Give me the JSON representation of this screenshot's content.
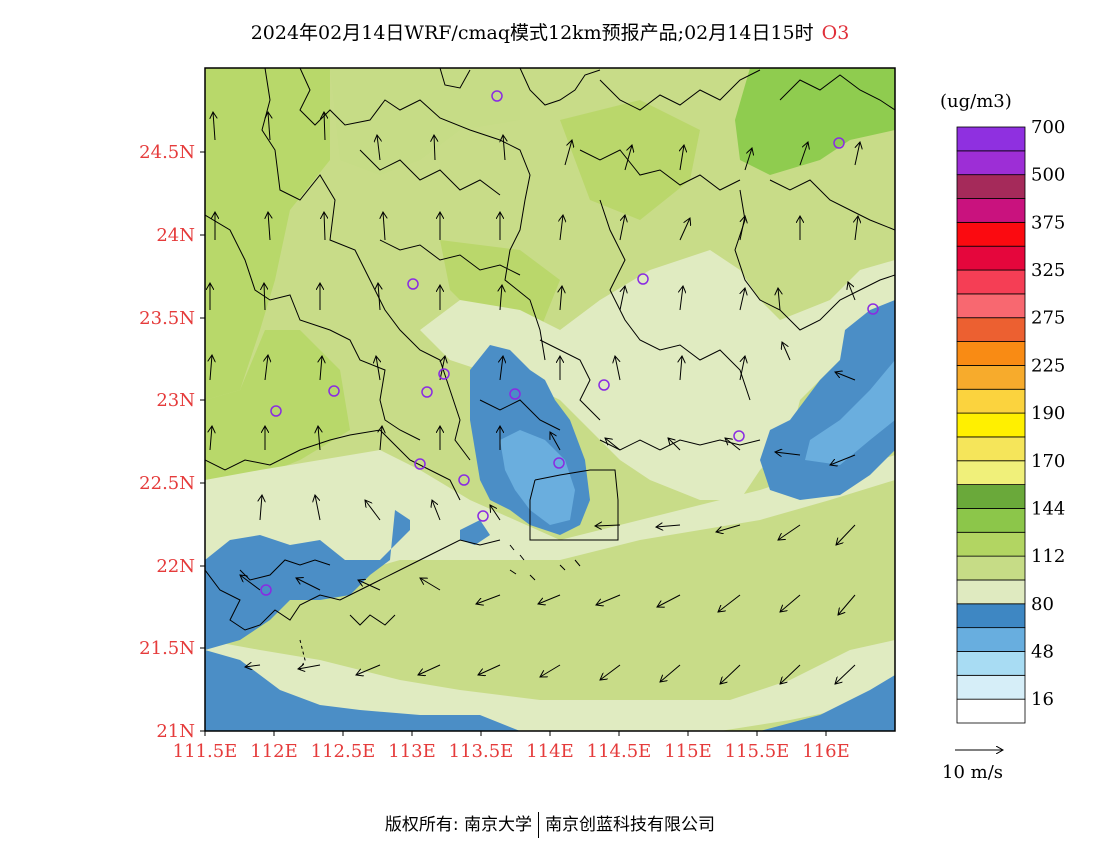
{
  "title": {
    "text": "2024年02月14日WRF/cmaq模式12km预报产品;02月14日15时",
    "pollutant": "O3"
  },
  "axes": {
    "lon_ticks": [
      "111.5E",
      "112E",
      "112.5E",
      "113E",
      "113.5E",
      "114E",
      "114.5E",
      "115E",
      "115.5E",
      "116E"
    ],
    "lat_ticks": [
      "21N",
      "21.5N",
      "22N",
      "22.5N",
      "23N",
      "23.5N",
      "24N",
      "24.5N"
    ],
    "tick_color": "#e53b3b"
  },
  "legend": {
    "unit": "(ug/m3)",
    "labels": [
      "16",
      "48",
      "80",
      "112",
      "144",
      "170",
      "190",
      "225",
      "275",
      "325",
      "375",
      "500",
      "700"
    ],
    "colors_bottom_to_top": [
      "#ffffff",
      "#d6eef8",
      "#a8dcf3",
      "#68aedf",
      "#3e87c3",
      "#dfeac0",
      "#c6dc86",
      "#b2d562",
      "#8cc64a",
      "#6aa93a",
      "#f0f07a",
      "#f5e55a",
      "#fff000",
      "#fbd33e",
      "#f7ab2c",
      "#f98b14",
      "#ec6031",
      "#f86870",
      "#f53e55",
      "#e5063c",
      "#fb0a10",
      "#c9127e",
      "#a52a5a",
      "#9d2ed6",
      "#8f30e0"
    ]
  },
  "wind_ref": {
    "label": "10 m/s"
  },
  "footer": {
    "left": "版权所有: 南京大学",
    "right": "南京创蓝科技有限公司"
  },
  "map_colors": {
    "blue": "#4b8ec6",
    "light_blue": "#6aaede",
    "pale": "#e0ebc1",
    "green": "#c8dc88",
    "mid_green": "#b8d86a",
    "dark_green": "#8fcc4f",
    "station": "#8a2be2"
  }
}
